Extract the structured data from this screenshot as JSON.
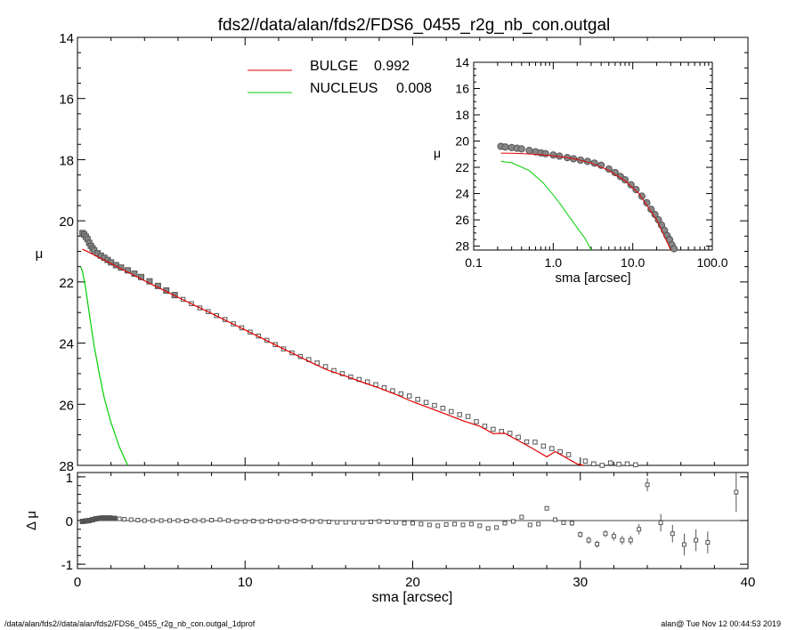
{
  "title": "fds2//data/alan/fds2/FDS6_0455_r2g_nb_con.outgal",
  "footer": {
    "left": "/data/alan/fds2//data/alan/fds2/FDS6_0455_r2g_nb_con.outgal_1dprof",
    "right": "alan@  Tue Nov 12 00:44:53 2019"
  },
  "colors": {
    "bulge": "#e00000",
    "nucleus": "#00d000",
    "data": "#555555",
    "axes": "#000000"
  },
  "chart_data": [
    {
      "id": "main_profile",
      "type": "scatter",
      "xlabel": "",
      "ylabel": "μ",
      "xlim": [
        0,
        40
      ],
      "ylim": [
        28,
        14
      ],
      "y_inverted": true,
      "yticks": [
        14,
        16,
        18,
        20,
        22,
        24,
        26,
        28
      ],
      "ytick_labels": [
        "14",
        "16",
        "18",
        "20",
        "22",
        "24",
        "26",
        "28"
      ],
      "legend": [
        {
          "label": "BULGE",
          "value": "0.992",
          "color": "#e00000"
        },
        {
          "label": "NUCLEUS",
          "value": "0.008",
          "color": "#00d000"
        }
      ],
      "legend_position": "top-left",
      "series": [
        {
          "name": "data",
          "style": "markers",
          "x": [
            0.3,
            0.4,
            0.5,
            0.6,
            0.7,
            0.8,
            0.9,
            1.0,
            1.2,
            1.4,
            1.6,
            1.8,
            2.0,
            2.3,
            2.6,
            3.0,
            3.4,
            3.8,
            4.3,
            4.8,
            5.3,
            5.8,
            6.3,
            6.8,
            7.3,
            7.8,
            8.3,
            8.8,
            9.3,
            9.8,
            10.3,
            10.8,
            11.3,
            11.8,
            12.3,
            12.8,
            13.3,
            13.8,
            14.3,
            14.8,
            15.3,
            15.8,
            16.3,
            16.8,
            17.3,
            17.8,
            18.3,
            18.8,
            19.3,
            19.8,
            20.3,
            20.8,
            21.3,
            21.8,
            22.3,
            22.8,
            23.3,
            23.8,
            24.3,
            24.8,
            25.3,
            25.8,
            26.3,
            26.8,
            27.3,
            27.8,
            28.3,
            28.8,
            29.3,
            30.3,
            30.8,
            31.3,
            31.8,
            32.3,
            32.8,
            33.3
          ],
          "y": [
            20.4,
            20.45,
            20.52,
            20.6,
            20.72,
            20.82,
            20.9,
            20.97,
            21.06,
            21.14,
            21.21,
            21.28,
            21.36,
            21.45,
            21.53,
            21.62,
            21.73,
            21.84,
            21.98,
            22.13,
            22.28,
            22.43,
            22.57,
            22.71,
            22.85,
            22.97,
            23.1,
            23.23,
            23.37,
            23.5,
            23.64,
            23.77,
            23.91,
            24.05,
            24.19,
            24.32,
            24.44,
            24.54,
            24.65,
            24.77,
            24.9,
            25.0,
            25.11,
            25.19,
            25.27,
            25.36,
            25.46,
            25.56,
            25.66,
            25.73,
            25.84,
            25.94,
            26.04,
            26.13,
            26.24,
            26.34,
            26.4,
            26.57,
            26.72,
            26.82,
            26.89,
            26.95,
            27.08,
            27.23,
            27.24,
            27.37,
            27.45,
            27.55,
            27.65,
            27.86,
            27.95,
            28.0,
            27.92,
            27.96,
            27.95,
            27.98
          ]
        },
        {
          "name": "BULGE",
          "style": "line",
          "color": "#e00000",
          "x": [
            0.3,
            0.5,
            1.0,
            1.5,
            2.0,
            3.0,
            4.0,
            5.0,
            6.0,
            7.0,
            8.0,
            9.0,
            10.0,
            11.0,
            12.0,
            13.0,
            14.0,
            15.0,
            16.0,
            17.0,
            18.0,
            19.0,
            20.0,
            21.0,
            22.0,
            23.0,
            24.0,
            24.8,
            25.5,
            26.0,
            27.0,
            28.0,
            28.5,
            29.0,
            29.8,
            30.2
          ],
          "y": [
            20.93,
            20.98,
            21.12,
            21.26,
            21.4,
            21.68,
            21.96,
            22.23,
            22.5,
            22.77,
            23.03,
            23.3,
            23.57,
            23.84,
            24.11,
            24.38,
            24.65,
            24.9,
            25.08,
            25.28,
            25.47,
            25.68,
            25.92,
            26.12,
            26.33,
            26.54,
            26.72,
            26.96,
            26.95,
            27.1,
            27.4,
            27.72,
            27.55,
            27.7,
            27.95,
            28.05
          ]
        },
        {
          "name": "NUCLEUS",
          "style": "line",
          "color": "#00d000",
          "x": [
            0.2,
            0.3,
            0.5,
            0.75,
            1.0,
            1.3,
            1.6,
            2.0,
            2.5,
            3.0
          ],
          "y": [
            21.52,
            21.65,
            22.25,
            23.2,
            24.1,
            25.0,
            25.8,
            26.6,
            27.4,
            28.0
          ]
        }
      ]
    },
    {
      "id": "residuals",
      "type": "scatter",
      "xlabel": "sma [arcsec]",
      "ylabel": "Δ μ",
      "xlim": [
        0,
        40
      ],
      "ylim": [
        -1.1,
        1.1
      ],
      "xticks": [
        0,
        10,
        20,
        30,
        40
      ],
      "xtick_labels": [
        "0",
        "10",
        "20",
        "30",
        "40"
      ],
      "yticks": [
        -1,
        0,
        1
      ],
      "ytick_labels": [
        "-1",
        "0",
        "1"
      ],
      "zero_line": true,
      "series": [
        {
          "name": "residual",
          "x": [
            0.3,
            0.5,
            0.7,
            0.9,
            1.1,
            1.3,
            1.5,
            1.7,
            1.9,
            2.2,
            2.5,
            2.8,
            3.2,
            3.6,
            4.0,
            4.5,
            5.0,
            5.5,
            6.0,
            6.5,
            7.0,
            7.5,
            8.0,
            8.5,
            9.0,
            9.5,
            10.0,
            10.5,
            11.0,
            11.5,
            12.0,
            12.5,
            13.0,
            13.5,
            14.0,
            14.5,
            15.0,
            15.5,
            16.0,
            16.5,
            17.0,
            17.5,
            18.0,
            18.5,
            19.0,
            19.5,
            20.0,
            20.5,
            21.0,
            21.5,
            22.0,
            22.5,
            23.0,
            23.5,
            24.0,
            24.5,
            25.0,
            25.5,
            26.0,
            26.5,
            27.0,
            27.5,
            28.0,
            28.5,
            29.0,
            29.5,
            30.0,
            30.5,
            31.0,
            31.5,
            32.0,
            32.5,
            33.0,
            33.5,
            34.0,
            34.8,
            35.5,
            36.2,
            36.9,
            37.6,
            39.3
          ],
          "y": [
            -0.02,
            -0.01,
            0.0,
            0.02,
            0.04,
            0.05,
            0.06,
            0.06,
            0.06,
            0.05,
            0.04,
            0.03,
            0.02,
            0.01,
            0.0,
            0.0,
            0.0,
            0.0,
            0.0,
            -0.01,
            0.0,
            0.0,
            0.01,
            0.02,
            0.0,
            -0.02,
            -0.02,
            -0.01,
            -0.02,
            -0.01,
            -0.02,
            -0.02,
            -0.01,
            -0.01,
            -0.02,
            -0.02,
            -0.03,
            -0.04,
            -0.04,
            -0.04,
            -0.04,
            -0.03,
            -0.02,
            -0.03,
            -0.04,
            -0.06,
            -0.06,
            -0.08,
            -0.1,
            -0.12,
            -0.09,
            -0.08,
            -0.1,
            -0.08,
            -0.12,
            -0.18,
            -0.16,
            -0.06,
            -0.02,
            0.08,
            -0.1,
            -0.08,
            0.28,
            0.02,
            -0.05,
            -0.06,
            -0.32,
            -0.45,
            -0.54,
            -0.3,
            -0.36,
            -0.45,
            -0.45,
            -0.2,
            0.82,
            -0.05,
            -0.3,
            -0.55,
            -0.45,
            -0.5,
            0.65
          ],
          "yerr": [
            0.01,
            0.01,
            0.01,
            0.01,
            0.01,
            0.01,
            0.01,
            0.01,
            0.01,
            0.01,
            0.01,
            0.01,
            0.01,
            0.01,
            0.01,
            0.01,
            0.01,
            0.01,
            0.01,
            0.01,
            0.01,
            0.01,
            0.01,
            0.01,
            0.01,
            0.01,
            0.01,
            0.01,
            0.01,
            0.01,
            0.01,
            0.01,
            0.01,
            0.01,
            0.01,
            0.01,
            0.01,
            0.01,
            0.01,
            0.01,
            0.01,
            0.01,
            0.01,
            0.01,
            0.01,
            0.01,
            0.01,
            0.01,
            0.01,
            0.01,
            0.01,
            0.01,
            0.01,
            0.01,
            0.01,
            0.01,
            0.01,
            0.01,
            0.01,
            0.02,
            0.02,
            0.02,
            0.05,
            0.03,
            0.05,
            0.06,
            0.07,
            0.08,
            0.08,
            0.08,
            0.1,
            0.1,
            0.1,
            0.12,
            0.15,
            0.2,
            0.2,
            0.25,
            0.25,
            0.25,
            0.45
          ]
        }
      ]
    },
    {
      "id": "inset_log",
      "type": "scatter",
      "xlabel": "sma [arcsec]",
      "ylabel": "μ",
      "xscale": "log",
      "xlim": [
        0.1,
        100
      ],
      "ylim": [
        28.3,
        14
      ],
      "y_inverted": true,
      "xticks": [
        0.1,
        1,
        10,
        100
      ],
      "xtick_labels": [
        "0.1",
        "1.0",
        "10.0",
        "100.0"
      ],
      "yticks": [
        14,
        16,
        18,
        20,
        22,
        24,
        26,
        28
      ],
      "ytick_labels": [
        "14",
        "16",
        "18",
        "20",
        "22",
        "24",
        "26",
        "28"
      ],
      "series": [
        {
          "name": "data",
          "style": "markers",
          "x": [
            0.22,
            0.25,
            0.3,
            0.35,
            0.4,
            0.5,
            0.6,
            0.7,
            0.8,
            1.0,
            1.2,
            1.5,
            1.8,
            2.2,
            2.7,
            3.3,
            4.0,
            5.0,
            6.0,
            7.0,
            8.0,
            9.5,
            11.0,
            13.0,
            15.0,
            17.0,
            19.0,
            21.0,
            23.0,
            25.0,
            27.0,
            29.0,
            31.0,
            33.0
          ],
          "y": [
            20.4,
            20.45,
            20.5,
            20.55,
            20.6,
            20.72,
            20.82,
            20.9,
            20.96,
            21.06,
            21.15,
            21.26,
            21.35,
            21.45,
            21.55,
            21.68,
            21.84,
            22.13,
            22.4,
            22.7,
            22.95,
            23.33,
            23.7,
            24.2,
            24.7,
            25.2,
            25.6,
            26.0,
            26.4,
            26.8,
            27.2,
            27.5,
            27.9,
            28.2
          ]
        },
        {
          "name": "BULGE",
          "style": "line",
          "color": "#e00000",
          "x": [
            0.22,
            0.3,
            0.5,
            0.7,
            1.0,
            1.5,
            2.0,
            3.0,
            5.0,
            8.0,
            12.0,
            20.0,
            30.0
          ],
          "y": [
            20.92,
            20.93,
            20.98,
            21.04,
            21.12,
            21.26,
            21.4,
            21.68,
            22.23,
            23.03,
            24.0,
            26.0,
            28.3
          ]
        },
        {
          "name": "NUCLEUS",
          "style": "line",
          "color": "#00d000",
          "x": [
            0.22,
            0.3,
            0.5,
            0.75,
            1.0,
            1.3,
            1.6,
            2.0,
            2.5,
            3.0
          ],
          "y": [
            21.55,
            21.65,
            22.25,
            23.2,
            24.1,
            25.0,
            25.8,
            26.6,
            27.4,
            28.3
          ]
        }
      ]
    }
  ]
}
